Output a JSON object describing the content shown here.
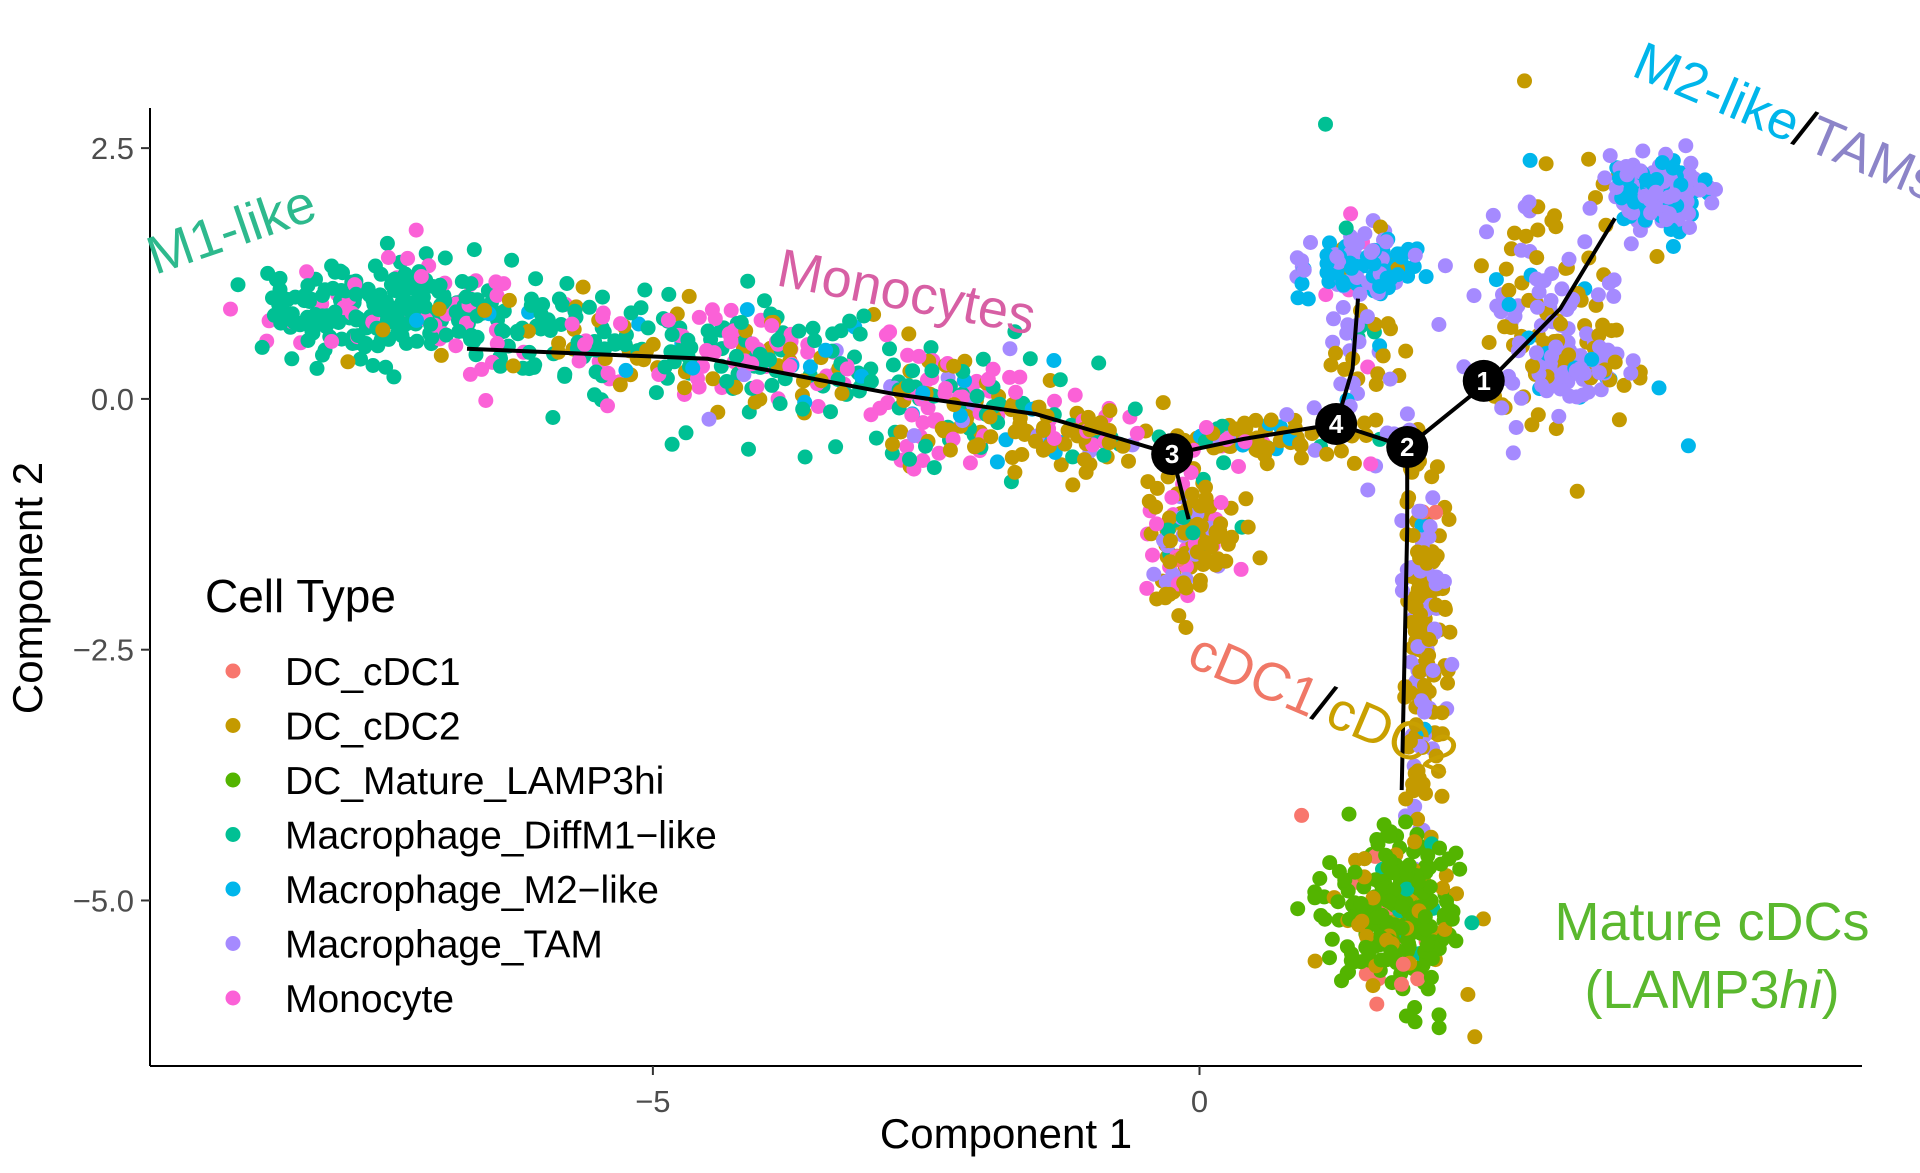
{
  "chart_data": {
    "type": "scatter",
    "title": "",
    "xlabel": "Component 1",
    "ylabel": "Component 2",
    "xlim": [
      -9.6,
      6.06
    ],
    "ylim": [
      -6.65,
      2.9
    ],
    "xticks": [
      {
        "v": -5,
        "label": "−5"
      },
      {
        "v": 0,
        "label": "0"
      }
    ],
    "yticks": [
      {
        "v": 2.5,
        "label": "2.5"
      },
      {
        "v": 0,
        "label": "0.0"
      },
      {
        "v": -2.5,
        "label": "−2.5"
      },
      {
        "v": -5,
        "label": "−5.0"
      }
    ],
    "grid": false,
    "legend": {
      "title": "Cell Type",
      "position": "left-inside",
      "entries": [
        {
          "name": "DC_cDC1",
          "color": "#F8766D"
        },
        {
          "name": "DC_cDC2",
          "color": "#C49A00"
        },
        {
          "name": "DC_Mature_LAMP3hi",
          "color": "#53B400"
        },
        {
          "name": "Macrophage_DiffM1−like",
          "color": "#00C094"
        },
        {
          "name": "Macrophage_M2−like",
          "color": "#00B6EB"
        },
        {
          "name": "Macrophage_TAM",
          "color": "#A58AFF"
        },
        {
          "name": "Monocyte",
          "color": "#FB61D7"
        }
      ]
    },
    "trajectory": {
      "segments": [
        [
          [
            -6.7,
            0.5
          ],
          [
            -4.5,
            0.4
          ],
          [
            -2.8,
            0.05
          ],
          [
            -1.5,
            -0.15
          ],
          [
            -0.25,
            -0.55
          ]
        ],
        [
          [
            -0.25,
            -0.55
          ],
          [
            0.4,
            -0.4
          ],
          [
            1.25,
            -0.25
          ]
        ],
        [
          [
            1.25,
            -0.25
          ],
          [
            1.9,
            -0.48
          ]
        ],
        [
          [
            1.9,
            -0.48
          ],
          [
            2.65,
            0.18
          ],
          [
            3.3,
            0.9
          ],
          [
            3.8,
            1.8
          ]
        ],
        [
          [
            1.9,
            -0.48
          ],
          [
            1.9,
            -1.3
          ],
          [
            1.85,
            -3.9
          ]
        ],
        [
          [
            1.25,
            -0.25
          ],
          [
            1.4,
            0.3
          ],
          [
            1.45,
            1.0
          ]
        ],
        [
          [
            -0.25,
            -0.55
          ],
          [
            -0.1,
            -1.2
          ]
        ]
      ],
      "nodes": [
        {
          "label": "1",
          "x": 2.6,
          "y": 0.18
        },
        {
          "label": "2",
          "x": 1.9,
          "y": -0.48
        },
        {
          "label": "3",
          "x": -0.25,
          "y": -0.55
        },
        {
          "label": "4",
          "x": 1.25,
          "y": -0.25
        }
      ]
    },
    "clusters": [
      {
        "cx": -7.4,
        "cy": 0.9,
        "sx": 0.65,
        "sy": 0.25,
        "n": 260,
        "mix": [
          0,
          0,
          0,
          0.85,
          0,
          0,
          0.15
        ]
      },
      {
        "cx": -5.6,
        "cy": 0.6,
        "sx": 0.9,
        "sy": 0.25,
        "n": 150,
        "mix": [
          0,
          0.15,
          0,
          0.55,
          0.05,
          0,
          0.25
        ]
      },
      {
        "cx": -4.0,
        "cy": 0.3,
        "sx": 0.7,
        "sy": 0.25,
        "n": 120,
        "mix": [
          0,
          0.2,
          0,
          0.45,
          0.05,
          0.05,
          0.25
        ]
      },
      {
        "cx": -2.3,
        "cy": -0.05,
        "sx": 0.55,
        "sy": 0.3,
        "n": 140,
        "mix": [
          0,
          0.2,
          0,
          0.3,
          0.05,
          0.05,
          0.4
        ]
      },
      {
        "cx": -1.2,
        "cy": -0.35,
        "sx": 0.55,
        "sy": 0.15,
        "n": 80,
        "mix": [
          0,
          0.6,
          0,
          0.15,
          0.1,
          0.05,
          0.1
        ]
      },
      {
        "cx": -0.1,
        "cy": -1.35,
        "sx": 0.22,
        "sy": 0.35,
        "n": 130,
        "mix": [
          0.02,
          0.68,
          0,
          0.05,
          0,
          0.1,
          0.15
        ]
      },
      {
        "cx": 0.6,
        "cy": -0.4,
        "sx": 0.45,
        "sy": 0.1,
        "n": 70,
        "mix": [
          0,
          0.6,
          0,
          0.15,
          0.1,
          0.1,
          0.05
        ]
      },
      {
        "cx": 1.45,
        "cy": 0.6,
        "sx": 0.15,
        "sy": 0.6,
        "n": 70,
        "mix": [
          0,
          0.4,
          0,
          0.05,
          0.1,
          0.4,
          0.05
        ]
      },
      {
        "cx": 1.5,
        "cy": 1.3,
        "sx": 0.28,
        "sy": 0.17,
        "n": 90,
        "mix": [
          0,
          0.05,
          0,
          0,
          0.65,
          0.3,
          0
        ]
      },
      {
        "cx": 2.05,
        "cy": -2.4,
        "sx": 0.1,
        "sy": 0.95,
        "n": 180,
        "mix": [
          0.02,
          0.65,
          0,
          0,
          0.03,
          0.3,
          0
        ]
      },
      {
        "cx": 3.2,
        "cy": 0.9,
        "sx": 0.4,
        "sy": 0.6,
        "n": 130,
        "mix": [
          0,
          0.45,
          0,
          0,
          0.1,
          0.45,
          0
        ]
      },
      {
        "cx": 4.2,
        "cy": 2.05,
        "sx": 0.22,
        "sy": 0.17,
        "n": 160,
        "mix": [
          0,
          0,
          0,
          0,
          0.3,
          0.7,
          0
        ]
      },
      {
        "cx": 3.4,
        "cy": 0.3,
        "sx": 0.28,
        "sy": 0.14,
        "n": 110,
        "mix": [
          0,
          0.2,
          0,
          0,
          0.05,
          0.75,
          0
        ]
      },
      {
        "cx": 1.75,
        "cy": -5.15,
        "sx": 0.3,
        "sy": 0.4,
        "n": 280,
        "mix": [
          0.03,
          0.12,
          0.83,
          0.02,
          0,
          0,
          0
        ]
      }
    ],
    "annotations": [
      {
        "parts": [
          {
            "text": "M1-like",
            "color": "#2DB98D"
          }
        ]
      },
      {
        "parts": [
          {
            "text": "Monocytes",
            "color": "#D75FA4"
          }
        ]
      },
      {
        "parts": [
          {
            "text": "M2-like",
            "color": "#00B6EB"
          },
          {
            "text": "/",
            "color": "#000000"
          },
          {
            "text": "TAMs",
            "color": "#8C84C8"
          }
        ]
      },
      {
        "parts": [
          {
            "text": "cDC1",
            "color": "#F07867"
          },
          {
            "text": "/",
            "color": "#000000"
          },
          {
            "text": "cDC2",
            "color": "#C9A000"
          }
        ]
      },
      {
        "parts": [
          {
            "text": "Mature cDCs",
            "color": "#5AB82E"
          }
        ]
      },
      {
        "parts": [
          {
            "text": "(LAMP3",
            "color": "#5AB82E"
          },
          {
            "text": "hi",
            "color": "#5AB82E",
            "italic": true
          },
          {
            "text": ")",
            "color": "#5AB82E"
          }
        ]
      }
    ]
  }
}
